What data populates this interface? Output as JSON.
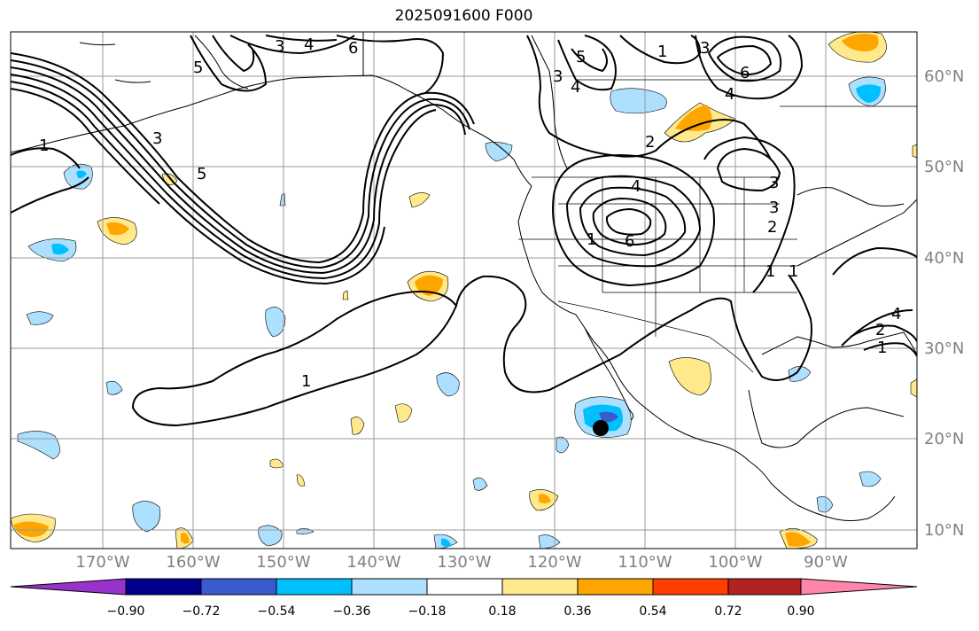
{
  "title": "2025091600 F000",
  "lon_labels": [
    "170°W",
    "160°W",
    "150°W",
    "140°W",
    "130°W",
    "120°W",
    "110°W",
    "100°W",
    "90°W"
  ],
  "lat_labels": [
    "60°N",
    "50°N",
    "40°N",
    "30°N",
    "20°N",
    "10°N"
  ],
  "contour_labels": [
    "3",
    "4",
    "6",
    "5",
    "1",
    "3",
    "1",
    "3",
    "5",
    "6",
    "4",
    "2",
    "4",
    "6",
    "4",
    "2",
    "3",
    "1",
    "3",
    "1",
    "2",
    "1",
    "1",
    "1",
    "4",
    "3",
    "5"
  ],
  "colorbar": {
    "labels": [
      "−0.90",
      "−0.72",
      "−0.54",
      "−0.36",
      "−0.18",
      "0.18",
      "0.36",
      "0.54",
      "0.72",
      "0.90"
    ],
    "colors": [
      "#9932CC",
      "#00008B",
      "#3A5BCD",
      "#00BFFF",
      "#ADDFFF",
      "#FFFFFF",
      "#FFE98A",
      "#FFA500",
      "#FF3E00",
      "#B22222",
      "#FF85AA"
    ]
  },
  "marker": {
    "label": "storm-center"
  }
}
